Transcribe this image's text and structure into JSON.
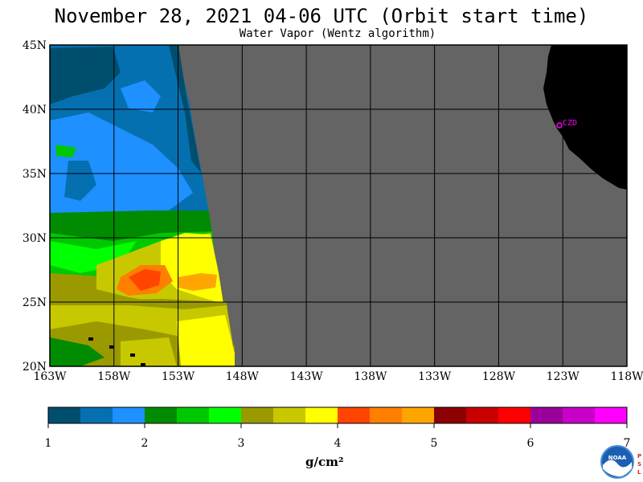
{
  "header": {
    "title": "November 28, 2021  04-06 UTC  (Orbit start time)",
    "subtitle": "Water Vapor (Wentz algorithm)"
  },
  "map": {
    "lat_labels": [
      "45N",
      "40N",
      "35N",
      "30N",
      "25N",
      "20N"
    ],
    "lon_labels": [
      "163W",
      "158W",
      "153W",
      "148W",
      "143W",
      "138W",
      "133W",
      "128W",
      "123W",
      "118W"
    ],
    "station_label": "CZD",
    "colors": {
      "land": "#000000",
      "no_data": "#646464",
      "grid": "#000000",
      "station": "#ff00ff"
    }
  },
  "colorbar": {
    "tick_labels": [
      "1",
      "2",
      "3",
      "4",
      "5",
      "6",
      "7"
    ],
    "units": "g/cm²",
    "colors": [
      "#004e6e",
      "#0570b0",
      "#1e90ff",
      "#008b00",
      "#00c800",
      "#00ff00",
      "#9a9a00",
      "#c8c800",
      "#ffff00",
      "#ff4500",
      "#ff7f00",
      "#ffa500",
      "#8b0000",
      "#c80000",
      "#ff0000",
      "#9b009b",
      "#c800c8",
      "#ff00ff"
    ]
  },
  "logo": {
    "text": "NOAA",
    "side_text": "PSL"
  }
}
